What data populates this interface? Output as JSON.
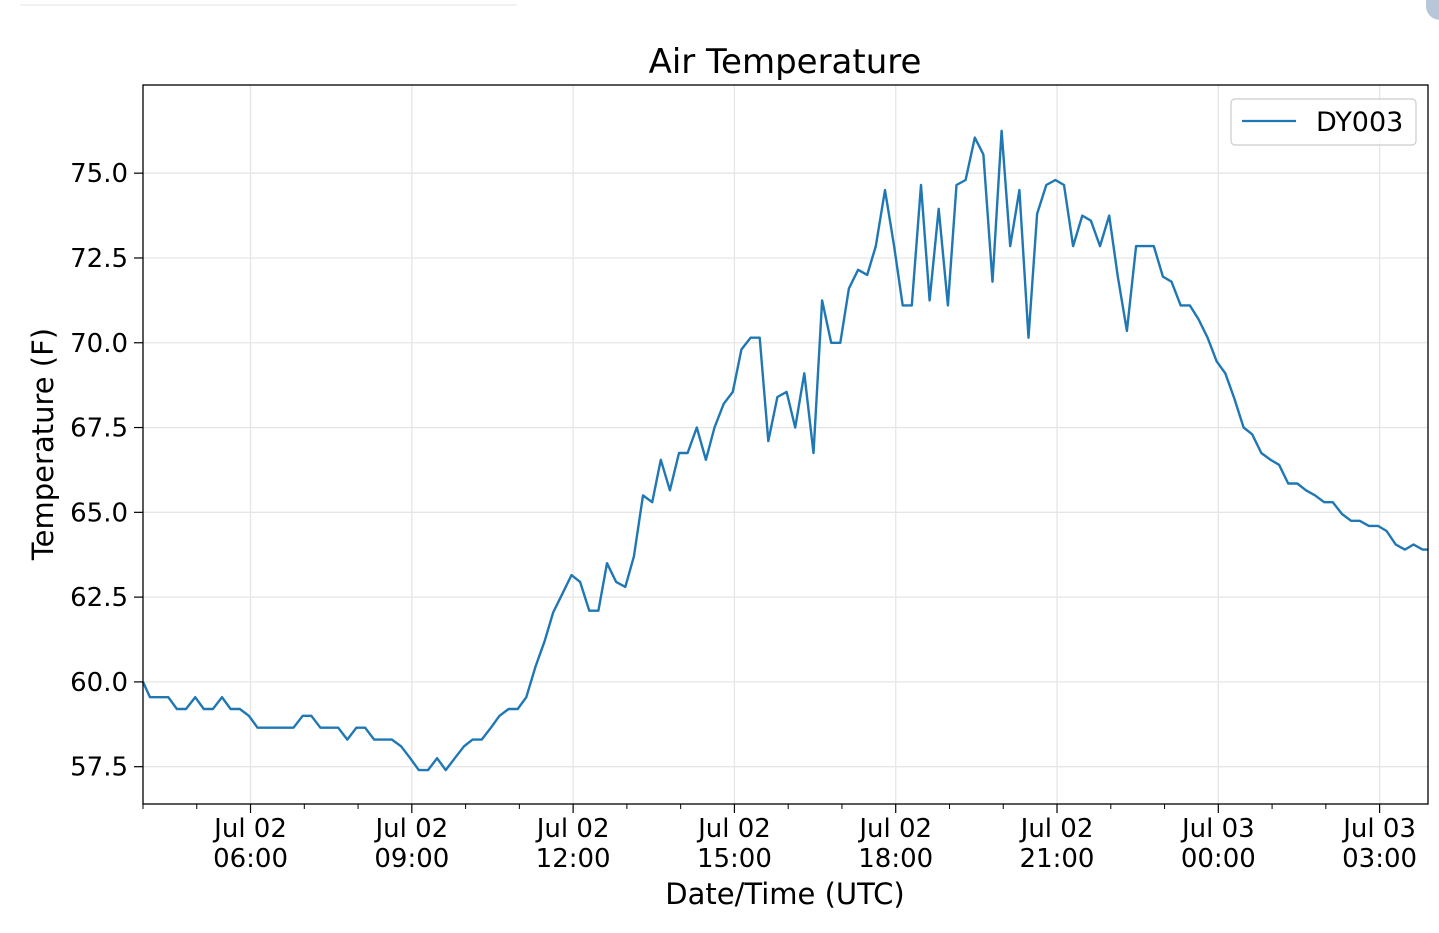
{
  "chart_data": {
    "type": "line",
    "title": "Air Temperature",
    "xlabel": "Date/Time (UTC)",
    "ylabel": "Temperature (F)",
    "xlim_hours": [
      4.0,
      27.9
    ],
    "ylim": [
      56.4,
      77.6
    ],
    "grid": true,
    "legend": "top-right",
    "x_ticks": [
      {
        "hour": 6,
        "line1": "Jul 02",
        "line2": "06:00"
      },
      {
        "hour": 9,
        "line1": "Jul 02",
        "line2": "09:00"
      },
      {
        "hour": 12,
        "line1": "Jul 02",
        "line2": "12:00"
      },
      {
        "hour": 15,
        "line1": "Jul 02",
        "line2": "15:00"
      },
      {
        "hour": 18,
        "line1": "Jul 02",
        "line2": "18:00"
      },
      {
        "hour": 21,
        "line1": "Jul 02",
        "line2": "21:00"
      },
      {
        "hour": 24,
        "line1": "Jul 03",
        "line2": "00:00"
      },
      {
        "hour": 27,
        "line1": "Jul 03",
        "line2": "03:00"
      }
    ],
    "y_ticks": [
      {
        "value": 57.5,
        "label": "57.5"
      },
      {
        "value": 60.0,
        "label": "60.0"
      },
      {
        "value": 62.5,
        "label": "62.5"
      },
      {
        "value": 65.0,
        "label": "65.0"
      },
      {
        "value": 67.5,
        "label": "67.5"
      },
      {
        "value": 70.0,
        "label": "70.0"
      },
      {
        "value": 72.5,
        "label": "72.5"
      },
      {
        "value": 75.0,
        "label": "75.0"
      }
    ],
    "series": [
      {
        "name": "DY003",
        "color": "#1f77b4",
        "points": [
          [
            4.0,
            60.0
          ],
          [
            4.13,
            59.55
          ],
          [
            4.3,
            59.55
          ],
          [
            4.47,
            59.55
          ],
          [
            4.63,
            59.2
          ],
          [
            4.8,
            59.2
          ],
          [
            4.97,
            59.55
          ],
          [
            5.13,
            59.2
          ],
          [
            5.3,
            59.2
          ],
          [
            5.47,
            59.55
          ],
          [
            5.63,
            59.2
          ],
          [
            5.8,
            59.2
          ],
          [
            5.97,
            59.0
          ],
          [
            6.13,
            58.65
          ],
          [
            6.3,
            58.65
          ],
          [
            6.47,
            58.65
          ],
          [
            6.63,
            58.65
          ],
          [
            6.8,
            58.65
          ],
          [
            6.97,
            59.0
          ],
          [
            7.13,
            59.0
          ],
          [
            7.3,
            58.65
          ],
          [
            7.47,
            58.65
          ],
          [
            7.63,
            58.65
          ],
          [
            7.8,
            58.3
          ],
          [
            7.97,
            58.65
          ],
          [
            8.13,
            58.65
          ],
          [
            8.3,
            58.3
          ],
          [
            8.47,
            58.3
          ],
          [
            8.63,
            58.3
          ],
          [
            8.8,
            58.1
          ],
          [
            8.97,
            57.75
          ],
          [
            9.13,
            57.4
          ],
          [
            9.3,
            57.4
          ],
          [
            9.47,
            57.75
          ],
          [
            9.63,
            57.4
          ],
          [
            9.8,
            57.75
          ],
          [
            9.97,
            58.1
          ],
          [
            10.13,
            58.3
          ],
          [
            10.3,
            58.3
          ],
          [
            10.47,
            58.65
          ],
          [
            10.63,
            59.0
          ],
          [
            10.8,
            59.2
          ],
          [
            10.97,
            59.2
          ],
          [
            11.13,
            59.55
          ],
          [
            11.3,
            60.45
          ],
          [
            11.47,
            61.2
          ],
          [
            11.63,
            62.05
          ],
          [
            11.8,
            62.6
          ],
          [
            11.97,
            63.15
          ],
          [
            12.13,
            62.95
          ],
          [
            12.3,
            62.1
          ],
          [
            12.47,
            62.1
          ],
          [
            12.63,
            63.5
          ],
          [
            12.8,
            62.95
          ],
          [
            12.97,
            62.8
          ],
          [
            13.13,
            63.7
          ],
          [
            13.3,
            65.5
          ],
          [
            13.47,
            65.3
          ],
          [
            13.63,
            66.55
          ],
          [
            13.8,
            65.65
          ],
          [
            13.97,
            66.75
          ],
          [
            14.13,
            66.75
          ],
          [
            14.3,
            67.5
          ],
          [
            14.47,
            66.55
          ],
          [
            14.63,
            67.5
          ],
          [
            14.8,
            68.2
          ],
          [
            14.97,
            68.55
          ],
          [
            15.13,
            69.8
          ],
          [
            15.3,
            70.15
          ],
          [
            15.47,
            70.15
          ],
          [
            15.63,
            67.1
          ],
          [
            15.8,
            68.4
          ],
          [
            15.97,
            68.55
          ],
          [
            16.13,
            67.5
          ],
          [
            16.3,
            69.1
          ],
          [
            16.47,
            66.75
          ],
          [
            16.63,
            71.25
          ],
          [
            16.8,
            70.0
          ],
          [
            16.97,
            70.0
          ],
          [
            17.13,
            71.6
          ],
          [
            17.3,
            72.15
          ],
          [
            17.47,
            72.0
          ],
          [
            17.63,
            72.85
          ],
          [
            17.8,
            74.5
          ],
          [
            17.97,
            72.85
          ],
          [
            18.13,
            71.1
          ],
          [
            18.3,
            71.1
          ],
          [
            18.47,
            74.65
          ],
          [
            18.63,
            71.25
          ],
          [
            18.8,
            73.95
          ],
          [
            18.97,
            71.1
          ],
          [
            19.13,
            74.65
          ],
          [
            19.3,
            74.8
          ],
          [
            19.47,
            76.05
          ],
          [
            19.63,
            75.55
          ],
          [
            19.8,
            71.8
          ],
          [
            19.97,
            76.25
          ],
          [
            20.13,
            72.85
          ],
          [
            20.3,
            74.5
          ],
          [
            20.47,
            70.15
          ],
          [
            20.63,
            73.8
          ],
          [
            20.8,
            74.65
          ],
          [
            20.97,
            74.8
          ],
          [
            21.13,
            74.65
          ],
          [
            21.3,
            72.85
          ],
          [
            21.47,
            73.75
          ],
          [
            21.63,
            73.6
          ],
          [
            21.8,
            72.85
          ],
          [
            21.97,
            73.75
          ],
          [
            22.13,
            71.95
          ],
          [
            22.3,
            70.35
          ],
          [
            22.47,
            72.85
          ],
          [
            22.63,
            72.85
          ],
          [
            22.8,
            72.85
          ],
          [
            22.97,
            71.95
          ],
          [
            23.13,
            71.8
          ],
          [
            23.3,
            71.1
          ],
          [
            23.47,
            71.1
          ],
          [
            23.63,
            70.7
          ],
          [
            23.8,
            70.15
          ],
          [
            23.97,
            69.45
          ],
          [
            24.13,
            69.1
          ],
          [
            24.3,
            68.35
          ],
          [
            24.47,
            67.5
          ],
          [
            24.63,
            67.3
          ],
          [
            24.8,
            66.75
          ],
          [
            24.97,
            66.55
          ],
          [
            25.13,
            66.4
          ],
          [
            25.3,
            65.85
          ],
          [
            25.47,
            65.85
          ],
          [
            25.63,
            65.65
          ],
          [
            25.8,
            65.5
          ],
          [
            25.97,
            65.3
          ],
          [
            26.13,
            65.3
          ],
          [
            26.3,
            64.95
          ],
          [
            26.47,
            64.75
          ],
          [
            26.63,
            64.75
          ],
          [
            26.8,
            64.6
          ],
          [
            26.97,
            64.6
          ],
          [
            27.13,
            64.45
          ],
          [
            27.3,
            64.05
          ],
          [
            27.47,
            63.9
          ],
          [
            27.63,
            64.05
          ],
          [
            27.8,
            63.9
          ],
          [
            27.9,
            63.9
          ]
        ]
      }
    ]
  }
}
